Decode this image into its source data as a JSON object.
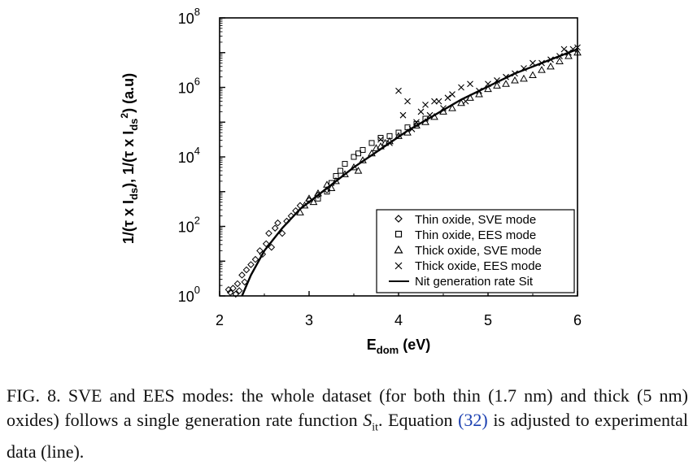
{
  "chart_data": {
    "type": "scatter",
    "y_scale": "log",
    "xlim": [
      2,
      6
    ],
    "ylim_exponents": [
      0,
      8
    ],
    "x_ticks": [
      "2",
      "3",
      "4",
      "5",
      "6"
    ],
    "y_ticks": [
      {
        "base": "10",
        "exp": "0"
      },
      {
        "base": "10",
        "exp": "2"
      },
      {
        "base": "10",
        "exp": "4"
      },
      {
        "base": "10",
        "exp": "6"
      },
      {
        "base": "10",
        "exp": "8"
      }
    ],
    "xlabel": {
      "main": "E",
      "sub": "dom",
      "rest": " (eV)"
    },
    "ylabel": {
      "p1": "1/(τ x I",
      "s1": "ds",
      "p2": "), 1/(τ x I",
      "s2": "ds",
      "sup": "2",
      "p3": ") (a.u)"
    },
    "legend_position": "bottom-right",
    "series": [
      {
        "name": "Thin oxide, SVE mode",
        "marker": "diamond",
        "points": [
          [
            2.1,
            0.18
          ],
          [
            2.12,
            0.1
          ],
          [
            2.15,
            0.22
          ],
          [
            2.18,
            0.05
          ],
          [
            2.2,
            0.35
          ],
          [
            2.22,
            0.15
          ],
          [
            2.25,
            0.6
          ],
          [
            2.28,
            0.4
          ],
          [
            2.3,
            0.75
          ],
          [
            2.35,
            0.9
          ],
          [
            2.4,
            1.05
          ],
          [
            2.45,
            1.3
          ],
          [
            2.48,
            1.2
          ],
          [
            2.52,
            1.5
          ],
          [
            2.55,
            1.8
          ],
          [
            2.58,
            1.4
          ],
          [
            2.62,
            1.95
          ],
          [
            2.65,
            2.1
          ],
          [
            2.7,
            1.8
          ],
          [
            2.75,
            2.15
          ],
          [
            2.8,
            2.3
          ],
          [
            2.85,
            2.45
          ],
          [
            2.9,
            2.6
          ],
          [
            3.0,
            2.75
          ],
          [
            3.1,
            2.9
          ],
          [
            3.2,
            3.05
          ]
        ]
      },
      {
        "name": "Thin oxide, EES mode",
        "marker": "square",
        "points": [
          [
            3.1,
            2.8
          ],
          [
            3.2,
            3.0
          ],
          [
            3.25,
            3.25
          ],
          [
            3.3,
            3.45
          ],
          [
            3.35,
            3.6
          ],
          [
            3.4,
            3.8
          ],
          [
            3.5,
            4.0
          ],
          [
            3.55,
            4.1
          ],
          [
            3.6,
            4.2
          ],
          [
            3.7,
            4.4
          ],
          [
            3.8,
            4.55
          ],
          [
            3.9,
            4.6
          ],
          [
            4.0,
            4.7
          ],
          [
            4.1,
            4.85
          ],
          [
            4.2,
            4.95
          ],
          [
            4.3,
            5.1
          ]
        ]
      },
      {
        "name": "Thick oxide, SVE mode",
        "marker": "triangle",
        "points": [
          [
            2.9,
            2.4
          ],
          [
            2.95,
            2.6
          ],
          [
            3.0,
            2.8
          ],
          [
            3.05,
            2.7
          ],
          [
            3.1,
            2.95
          ],
          [
            3.2,
            3.2
          ],
          [
            3.25,
            3.1
          ],
          [
            3.3,
            3.3
          ],
          [
            3.4,
            3.5
          ],
          [
            3.5,
            3.7
          ],
          [
            3.55,
            3.6
          ],
          [
            3.6,
            3.9
          ],
          [
            3.7,
            4.1
          ],
          [
            3.75,
            4.25
          ],
          [
            3.8,
            4.3
          ],
          [
            3.85,
            4.4
          ],
          [
            3.9,
            4.45
          ],
          [
            4.0,
            4.6
          ],
          [
            4.1,
            4.7
          ],
          [
            4.2,
            4.9
          ],
          [
            4.3,
            5.0
          ],
          [
            4.4,
            5.15
          ],
          [
            4.5,
            5.3
          ],
          [
            4.6,
            5.4
          ],
          [
            4.7,
            5.55
          ],
          [
            4.8,
            5.7
          ],
          [
            4.9,
            5.8
          ],
          [
            5.0,
            5.95
          ],
          [
            5.1,
            6.05
          ],
          [
            5.2,
            6.1
          ],
          [
            5.3,
            6.2
          ],
          [
            5.4,
            6.25
          ],
          [
            5.5,
            6.35
          ],
          [
            5.6,
            6.5
          ],
          [
            5.7,
            6.6
          ],
          [
            5.8,
            6.75
          ],
          [
            5.9,
            6.9
          ],
          [
            6.0,
            7.0
          ]
        ]
      },
      {
        "name": "Thick oxide, EES mode",
        "marker": "cross",
        "points": [
          [
            3.8,
            4.5
          ],
          [
            3.9,
            4.4
          ],
          [
            4.0,
            5.9
          ],
          [
            4.05,
            5.2
          ],
          [
            4.1,
            5.6
          ],
          [
            4.15,
            4.8
          ],
          [
            4.2,
            5.0
          ],
          [
            4.25,
            5.3
          ],
          [
            4.3,
            5.5
          ],
          [
            4.35,
            5.2
          ],
          [
            4.4,
            5.6
          ],
          [
            4.45,
            5.6
          ],
          [
            4.5,
            5.4
          ],
          [
            4.55,
            5.7
          ],
          [
            4.6,
            5.8
          ],
          [
            4.7,
            6.0
          ],
          [
            4.75,
            5.6
          ],
          [
            4.8,
            6.1
          ],
          [
            4.9,
            5.9
          ],
          [
            5.0,
            6.1
          ],
          [
            5.1,
            6.2
          ],
          [
            5.2,
            6.3
          ],
          [
            5.3,
            6.4
          ],
          [
            5.4,
            6.55
          ],
          [
            5.5,
            6.7
          ],
          [
            5.6,
            6.7
          ],
          [
            5.7,
            6.8
          ],
          [
            5.8,
            6.9
          ],
          [
            5.85,
            7.1
          ],
          [
            5.9,
            7.0
          ],
          [
            5.95,
            7.1
          ],
          [
            6.0,
            7.15
          ]
        ]
      }
    ],
    "fit_line": {
      "name": "Nit generation rate Sit",
      "curve": "log10(y) = 0.40*(4 - 1/(x - 1.5)*10/5)*... (see points)",
      "points": [
        [
          2.25,
          0.0
        ],
        [
          2.35,
          0.6
        ],
        [
          2.5,
          1.3
        ],
        [
          2.7,
          1.95
        ],
        [
          2.9,
          2.5
        ],
        [
          3.1,
          2.9
        ],
        [
          3.3,
          3.3
        ],
        [
          3.5,
          3.7
        ],
        [
          3.7,
          4.05
        ],
        [
          3.9,
          4.4
        ],
        [
          4.1,
          4.75
        ],
        [
          4.3,
          5.05
        ],
        [
          4.5,
          5.35
        ],
        [
          4.7,
          5.65
        ],
        [
          4.9,
          5.9
        ],
        [
          5.1,
          6.15
        ],
        [
          5.3,
          6.4
        ],
        [
          5.5,
          6.6
        ],
        [
          5.7,
          6.8
        ],
        [
          5.9,
          7.0
        ],
        [
          6.0,
          7.1
        ]
      ]
    }
  },
  "caption": {
    "part1": "FIG. 8. SVE and EES modes: the whole dataset (for both thin (1.7 nm) and thick (5 nm) oxides) follows a single generation rate function ",
    "symbol": "S",
    "symbol_sub": "it",
    "part2": ". Equation ",
    "ref": "(32)",
    "part3": " is adjusted to experimental data (line)."
  }
}
